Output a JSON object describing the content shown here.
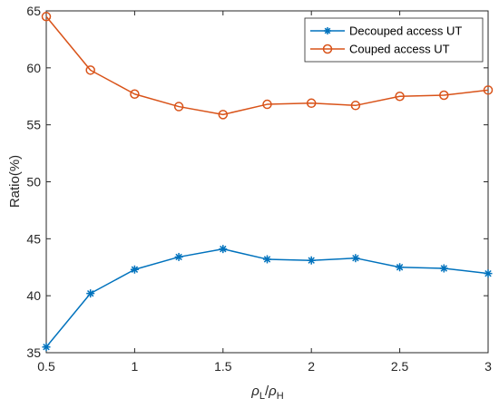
{
  "chart_data": {
    "type": "line",
    "xlabel": {
      "base": "ρ",
      "sub1": "L",
      "sep": "/",
      "base2": "ρ",
      "sub2": "H"
    },
    "ylabel": "Ratio(%)",
    "xlim": [
      0.5,
      3
    ],
    "ylim": [
      35,
      65
    ],
    "xticks": [
      0.5,
      1,
      1.5,
      2,
      2.5,
      3
    ],
    "xtick_labels": [
      "0.5",
      "1",
      "1.5",
      "2",
      "2.5",
      "3"
    ],
    "yticks": [
      35,
      40,
      45,
      50,
      55,
      60,
      65
    ],
    "ytick_labels": [
      "35",
      "40",
      "45",
      "50",
      "55",
      "60",
      "65"
    ],
    "grid": false,
    "legend_position": "top-right",
    "x": [
      0.5,
      0.75,
      1,
      1.25,
      1.5,
      1.75,
      2,
      2.25,
      2.5,
      2.75,
      3
    ],
    "series": [
      {
        "name": "Decouped access UT",
        "marker": "asterisk",
        "color": "#0072BD",
        "values": [
          35.5,
          40.2,
          42.3,
          43.4,
          44.1,
          43.2,
          43.1,
          43.3,
          42.5,
          42.4,
          41.95
        ]
      },
      {
        "name": "Couped access UT",
        "marker": "circle",
        "color": "#D95319",
        "values": [
          64.5,
          59.8,
          57.7,
          56.6,
          55.9,
          56.8,
          56.9,
          56.7,
          57.5,
          57.6,
          58.05
        ]
      }
    ]
  }
}
